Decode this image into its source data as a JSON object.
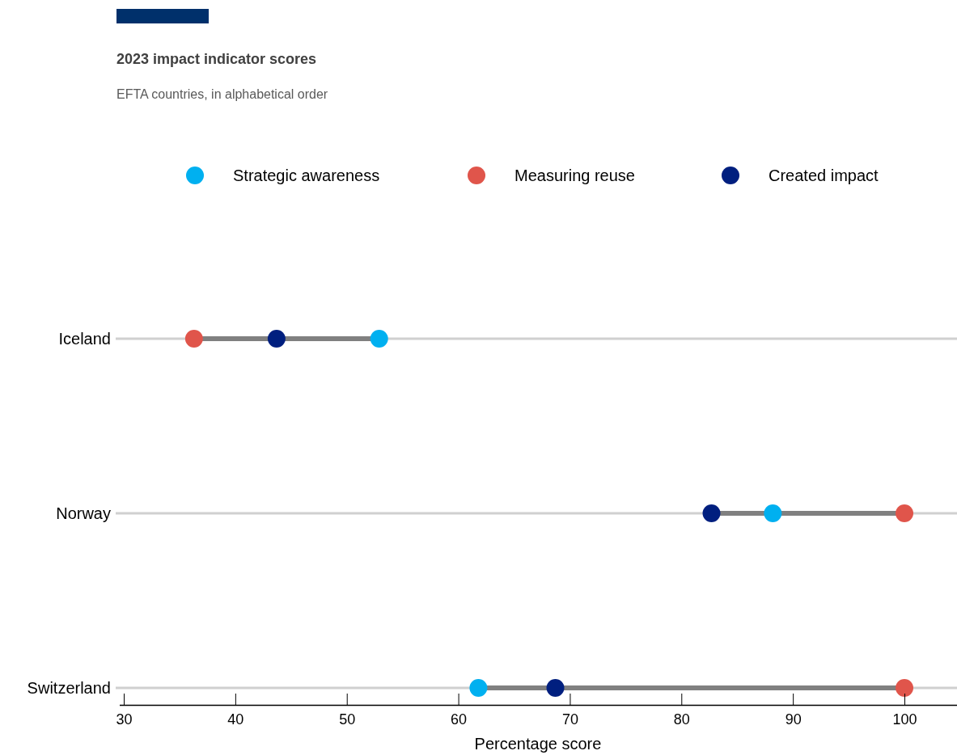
{
  "chart_data": {
    "type": "scatter",
    "orientation": "horizontal",
    "title": "2023 impact indicator scores",
    "subtitle": "EFTA countries, in alphabetical order",
    "xlabel": "Percentage score",
    "categories": [
      "Iceland",
      "Norway",
      "Switzerland"
    ],
    "series": [
      {
        "name": "Strategic awareness",
        "color": "#00b0f0",
        "values": [
          52.9,
          88.2,
          61.8
        ]
      },
      {
        "name": "Measuring reuse",
        "color": "#e0554b",
        "values": [
          36.3,
          100,
          100
        ]
      },
      {
        "name": "Created impact",
        "color": "#001f7f",
        "values": [
          43.7,
          82.7,
          68.7
        ]
      }
    ],
    "xlim": [
      29.6,
      104.7
    ],
    "xticks": [
      30,
      40,
      50,
      60,
      70,
      80,
      90,
      100
    ],
    "grid": "y",
    "legend": "top",
    "marker": "circle"
  }
}
